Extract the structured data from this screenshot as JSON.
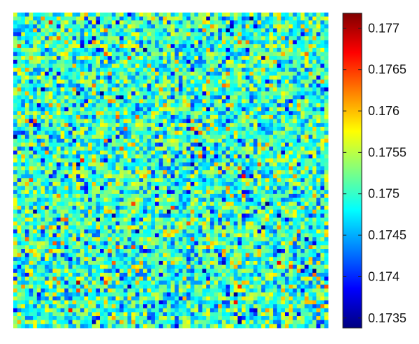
{
  "chart_data": {
    "type": "heatmap",
    "title": "",
    "xlabel": "",
    "ylabel": "",
    "colormap": "jet",
    "grid_size": [
      80,
      80
    ],
    "value_range": [
      0.17338,
      0.17718
    ],
    "distribution": {
      "mean": 0.175,
      "std": 0.0005
    },
    "colorbar": {
      "position": "right",
      "ticks": [
        "0.177",
        "0.1765",
        "0.176",
        "0.1755",
        "0.175",
        "0.1745",
        "0.174",
        "0.1735"
      ]
    },
    "grid": false
  }
}
